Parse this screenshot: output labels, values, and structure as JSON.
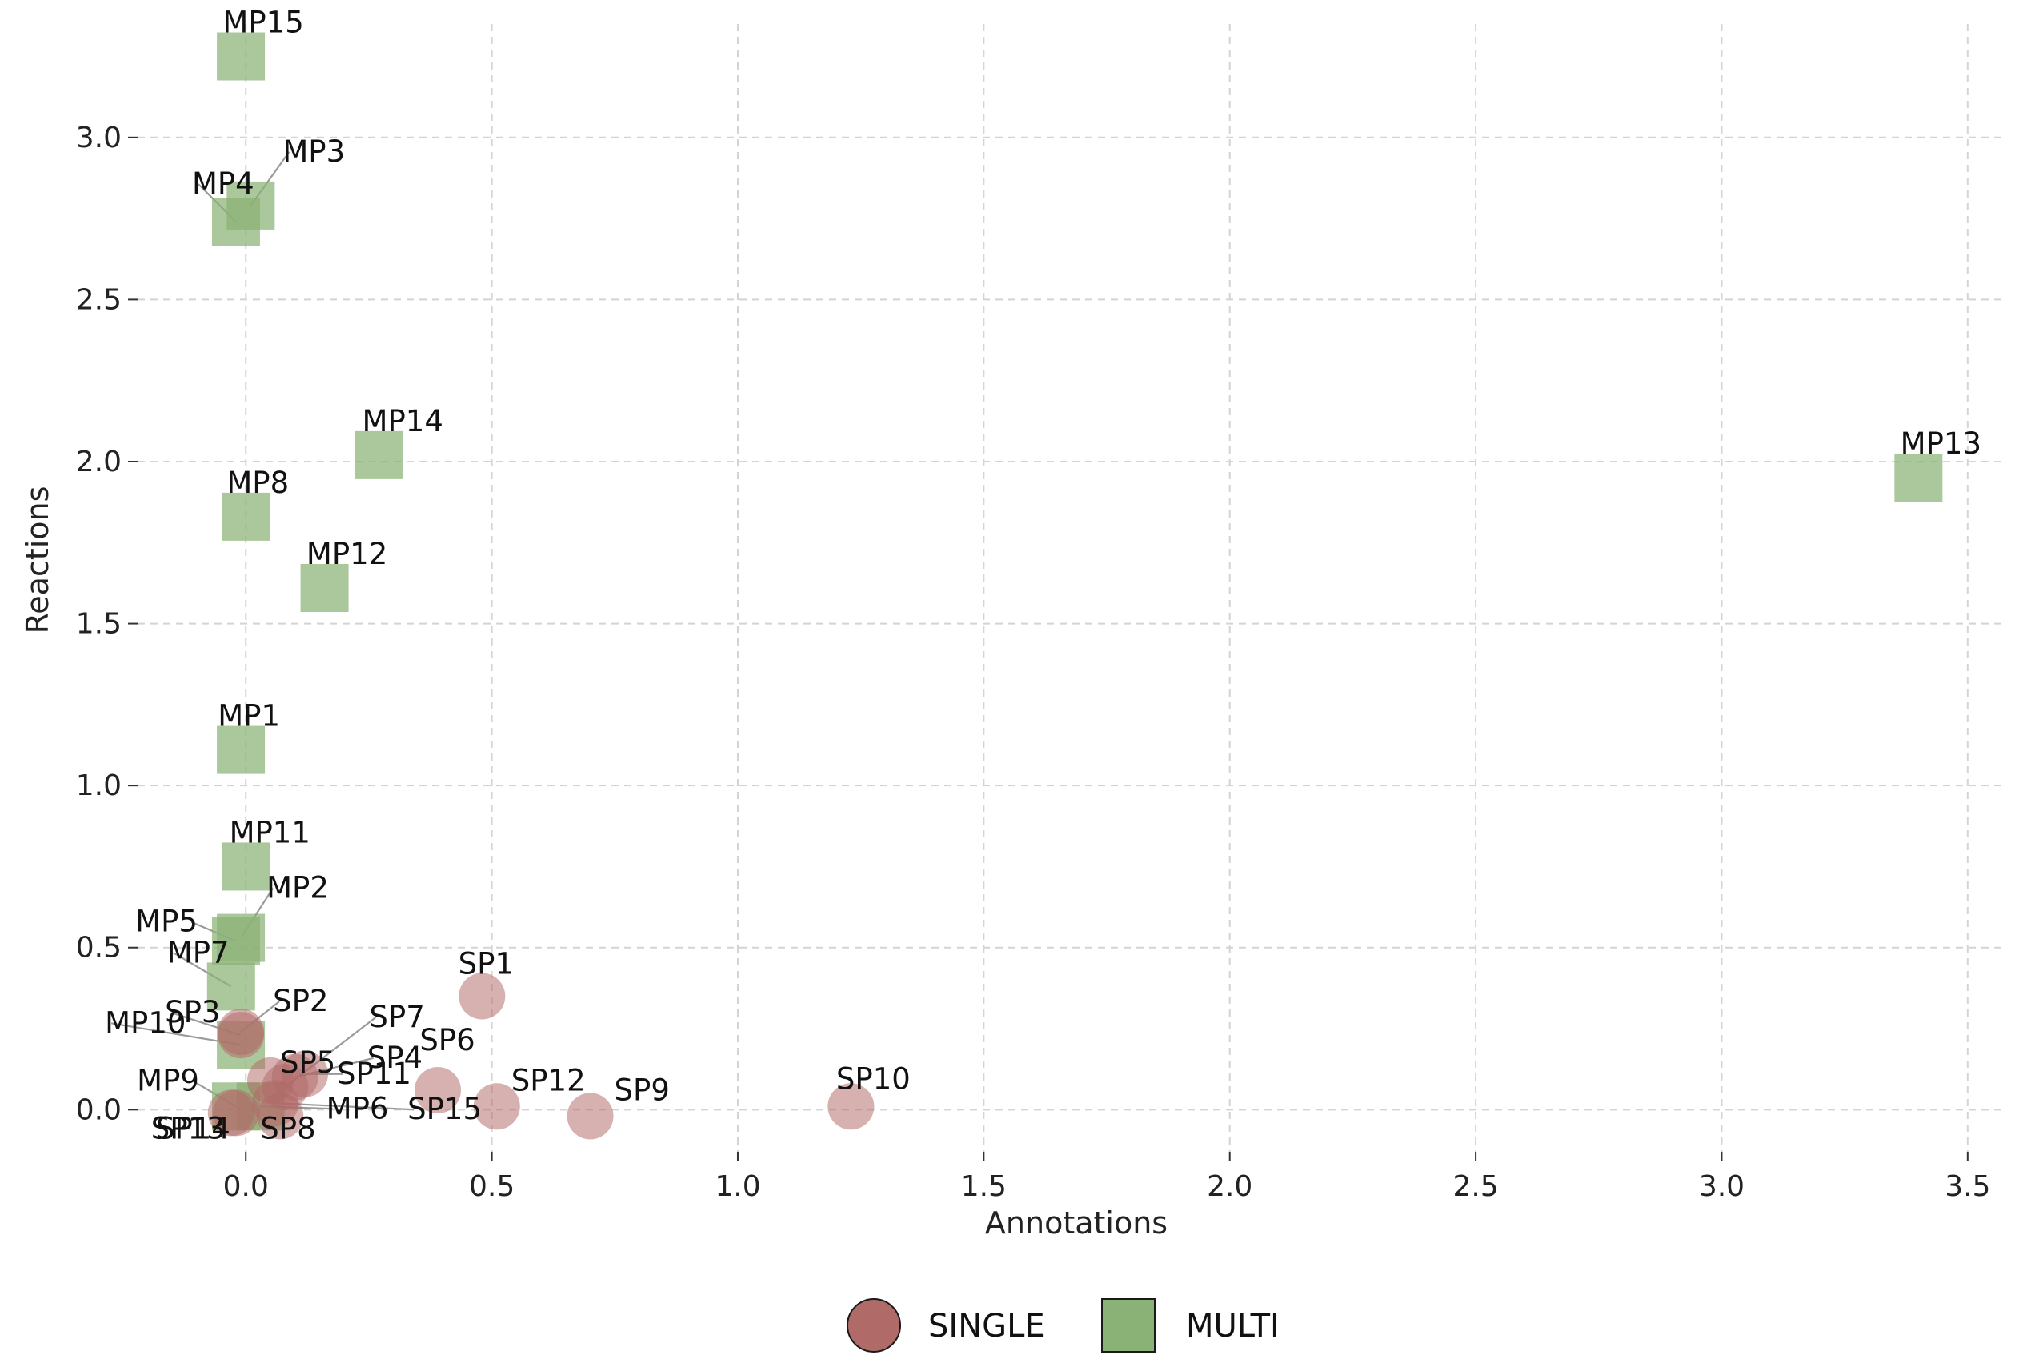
{
  "chart_data": {
    "type": "scatter",
    "title": "",
    "xlabel": "Annotations",
    "ylabel": "Reactions",
    "xlim": [
      -0.22,
      3.58
    ],
    "ylim": [
      -0.13,
      3.35
    ],
    "xticks": [
      0.0,
      0.5,
      1.0,
      1.5,
      2.0,
      2.5,
      3.0,
      3.5
    ],
    "yticks": [
      0.0,
      0.5,
      1.0,
      1.5,
      2.0,
      2.5,
      3.0
    ],
    "xtick_labels": [
      "0.0",
      "0.5",
      "1.0",
      "1.5",
      "2.0",
      "2.5",
      "3.0",
      "3.5"
    ],
    "ytick_labels": [
      "0.0",
      "0.5",
      "1.0",
      "1.5",
      "2.0",
      "2.5",
      "3.0"
    ],
    "grid": true,
    "legend_position": "bottom-center",
    "series": [
      {
        "name": "SINGLE",
        "marker": "circle",
        "color": "#b06a68",
        "points": [
          {
            "label": "SP1",
            "x": 0.48,
            "y": 0.35
          },
          {
            "label": "SP2",
            "x": -0.01,
            "y": 0.24
          },
          {
            "label": "SP3",
            "x": -0.01,
            "y": 0.23
          },
          {
            "label": "SP4",
            "x": 0.1,
            "y": 0.1
          },
          {
            "label": "SP5",
            "x": 0.05,
            "y": 0.09
          },
          {
            "label": "SP6",
            "x": 0.39,
            "y": 0.06
          },
          {
            "label": "SP7",
            "x": 0.08,
            "y": 0.07
          },
          {
            "label": "SP8",
            "x": 0.07,
            "y": -0.02
          },
          {
            "label": "SP9",
            "x": 0.7,
            "y": -0.02
          },
          {
            "label": "SP10",
            "x": 1.23,
            "y": 0.01
          },
          {
            "label": "SP11",
            "x": 0.12,
            "y": 0.11
          },
          {
            "label": "SP12",
            "x": 0.51,
            "y": 0.01
          },
          {
            "label": "SP13",
            "x": -0.03,
            "y": -0.01
          },
          {
            "label": "SP14",
            "x": -0.02,
            "y": -0.01
          },
          {
            "label": "SP15",
            "x": 0.06,
            "y": 0.02
          }
        ]
      },
      {
        "name": "MULTI",
        "marker": "square",
        "color": "#8ab276",
        "points": [
          {
            "label": "MP1",
            "x": -0.01,
            "y": 1.11
          },
          {
            "label": "MP2",
            "x": -0.01,
            "y": 0.53
          },
          {
            "label": "MP3",
            "x": 0.01,
            "y": 2.79
          },
          {
            "label": "MP4",
            "x": -0.02,
            "y": 2.74
          },
          {
            "label": "MP5",
            "x": -0.02,
            "y": 0.52
          },
          {
            "label": "MP6",
            "x": 0.03,
            "y": 0.01
          },
          {
            "label": "MP7",
            "x": -0.03,
            "y": 0.38
          },
          {
            "label": "MP8",
            "x": 0.0,
            "y": 1.83
          },
          {
            "label": "MP9",
            "x": -0.02,
            "y": 0.01
          },
          {
            "label": "MP10",
            "x": -0.01,
            "y": 0.2
          },
          {
            "label": "MP11",
            "x": 0.0,
            "y": 0.75
          },
          {
            "label": "MP12",
            "x": 0.16,
            "y": 1.61
          },
          {
            "label": "MP13",
            "x": 3.4,
            "y": 1.95
          },
          {
            "label": "MP14",
            "x": 0.27,
            "y": 2.02
          },
          {
            "label": "MP15",
            "x": -0.01,
            "y": 3.25
          }
        ]
      }
    ]
  }
}
